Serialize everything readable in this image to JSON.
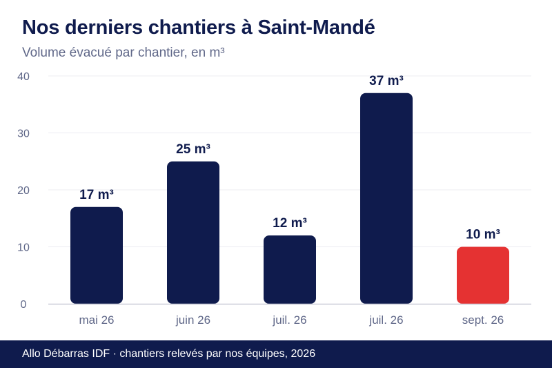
{
  "chart_data": {
    "type": "bar",
    "title": "Nos derniers chantiers à Saint-Mandé",
    "subtitle": "Volume évacué par chantier, en m³",
    "categories": [
      "mai 26",
      "juin 26",
      "juil. 26",
      "juil. 26",
      "sept. 26"
    ],
    "values": [
      17,
      25,
      12,
      37,
      10
    ],
    "data_labels": [
      "17 m³",
      "25 m³",
      "12 m³",
      "37 m³",
      "10 m³"
    ],
    "unit": "m³",
    "ylim": [
      0,
      40
    ],
    "yticks": [
      0,
      10,
      20,
      30,
      40
    ],
    "xlabel": "",
    "ylabel": "",
    "grid": true,
    "colors": {
      "bar": "#0f1b4d",
      "highlight": "#e53232",
      "highlight_index": 4,
      "grid": "#ececf2",
      "axis": "#c9cbd8",
      "tick_text": "#5f6788",
      "label_text": "#0f1b4d"
    }
  },
  "footer": {
    "text": "Allo Débarras IDF · chantiers relevés par nos équipes, 2026"
  }
}
